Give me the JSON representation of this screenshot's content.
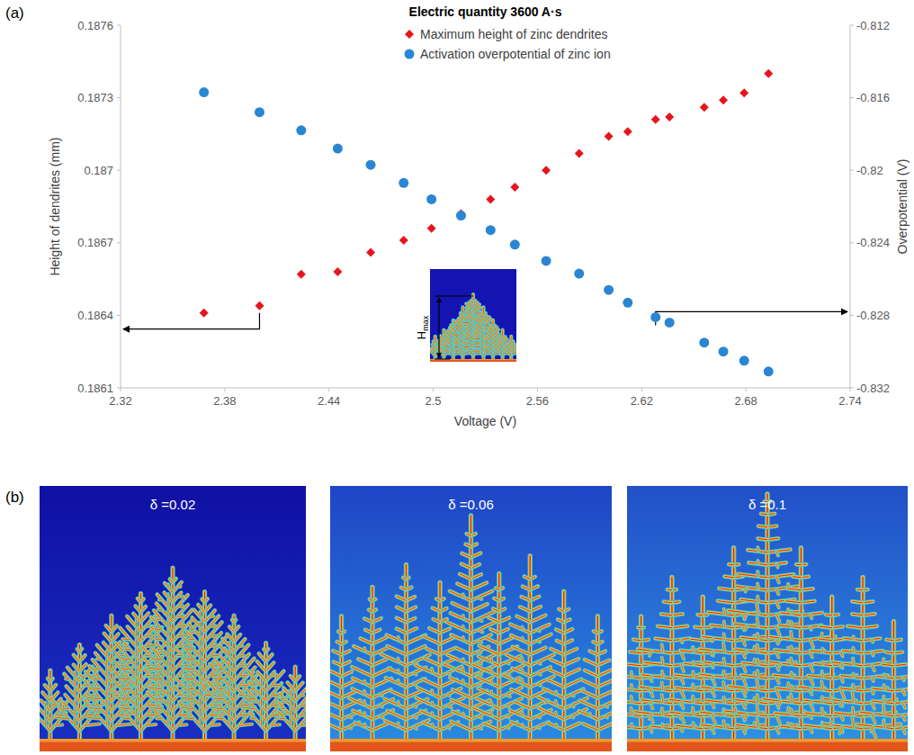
{
  "chart_data": {
    "type": "scatter",
    "title": "Electric quantity 3600 A·s",
    "x_label": "Voltage (V)",
    "y_label": "Height of dendrites (mm)",
    "y2_label": "Overpotential (V)",
    "x": [
      2.368,
      2.4,
      2.424,
      2.445,
      2.464,
      2.483,
      2.499,
      2.516,
      2.533,
      2.547,
      2.565,
      2.584,
      2.601,
      2.612,
      2.628,
      2.636,
      2.656,
      2.667,
      2.679,
      2.693
    ],
    "series": [
      {
        "name": "Maximum height of zinc dendrites",
        "color": "#e8141c",
        "marker": "diamond",
        "values": [
          0.18641,
          0.18644,
          0.18657,
          0.18658,
          0.18666,
          0.18671,
          0.18676,
          0.18682,
          0.18688,
          0.18693,
          0.187,
          0.18707,
          0.18714,
          0.18716,
          0.18721,
          0.18722,
          0.18726,
          0.18729,
          0.18732,
          0.1874
        ]
      },
      {
        "name": "Activation overpotential of zinc ion",
        "color": "#2a86d3",
        "marker": "circle",
        "axis": "y2",
        "values": [
          -0.8157,
          -0.8168,
          -0.8178,
          -0.8188,
          -0.8197,
          -0.8207,
          -0.8216,
          -0.8225,
          -0.8233,
          -0.8241,
          -0.825,
          -0.8257,
          -0.8266,
          -0.8273,
          -0.8281,
          -0.8284,
          -0.8295,
          -0.83,
          -0.8305,
          -0.8311
        ]
      }
    ],
    "xlim": [
      2.32,
      2.74
    ],
    "xticks": [
      2.32,
      2.38,
      2.44,
      2.5,
      2.56,
      2.62,
      2.68,
      2.74
    ],
    "ylim": [
      0.1861,
      0.1876
    ],
    "yticks": [
      0.1861,
      0.1864,
      0.1867,
      0.187,
      0.1873,
      0.1876
    ],
    "y2lim": [
      -0.832,
      -0.812
    ],
    "y2ticks": [
      -0.832,
      -0.828,
      -0.824,
      -0.82,
      -0.816,
      -0.812
    ],
    "grid": false,
    "legend": "top",
    "annotations": [
      {
        "text": "H",
        "subscript": "max"
      }
    ]
  },
  "panel_labels": [
    "(a)",
    "(b)"
  ],
  "images": [
    {
      "label": "δ =0.02"
    },
    {
      "label": "δ =0.06"
    },
    {
      "label": "δ =0.1"
    }
  ]
}
